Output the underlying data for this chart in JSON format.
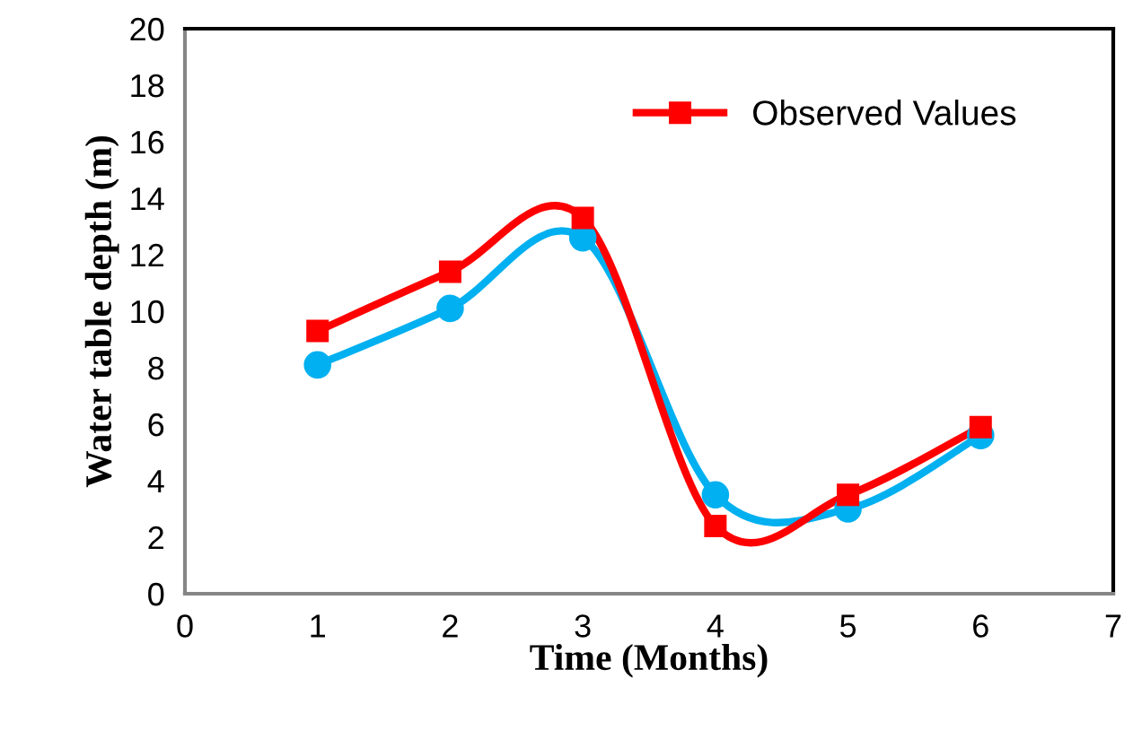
{
  "chart_data": {
    "type": "line",
    "xlabel": "Time (Months)",
    "ylabel": "Water table depth (m)",
    "x": [
      1,
      2,
      3,
      4,
      5,
      6
    ],
    "series": [
      {
        "color": "#00b0f0",
        "marker": "circle",
        "values": [
          8.1,
          10.1,
          12.6,
          3.5,
          3.0,
          5.6
        ]
      },
      {
        "name": "Observed Values",
        "color": "#ff0000",
        "marker": "square",
        "values": [
          9.3,
          11.4,
          13.3,
          2.4,
          3.5,
          5.9
        ]
      }
    ],
    "xlim": [
      0,
      7
    ],
    "xticks": [
      0,
      1,
      2,
      3,
      4,
      5,
      6,
      7
    ],
    "ylim": [
      0,
      20
    ],
    "yticks": [
      0,
      2,
      4,
      6,
      8,
      10,
      12,
      14,
      16,
      18,
      20
    ],
    "grid": false,
    "legend": "top right",
    "line_style": "solid"
  }
}
